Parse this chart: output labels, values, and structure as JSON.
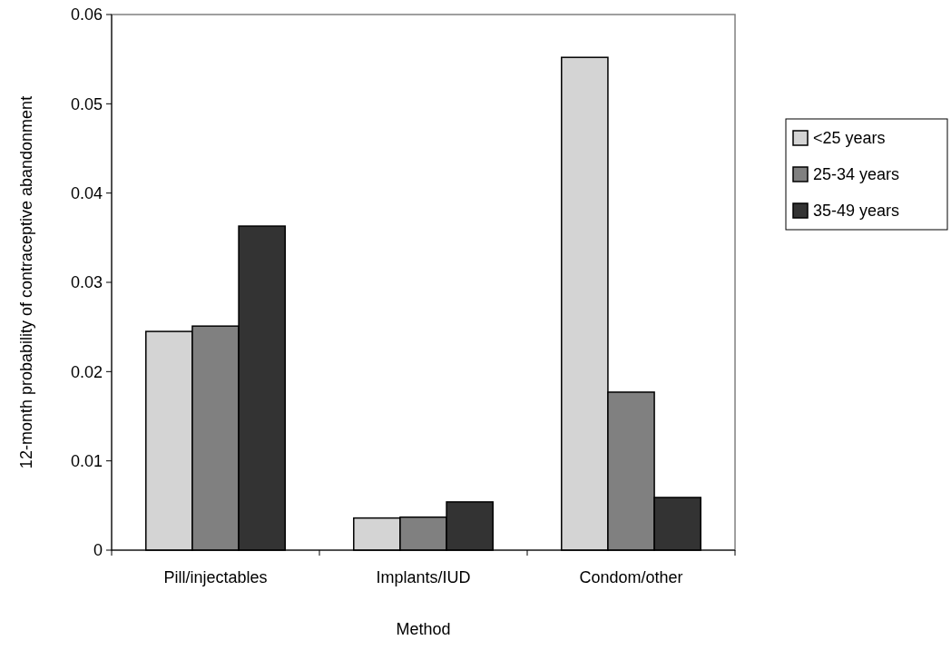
{
  "chart_data": {
    "type": "bar",
    "xlabel": "Method",
    "ylabel": "12-month probability of contraceptive abandonment",
    "categories": [
      "Pill/injectables",
      "Implants/IUD",
      "Condom/other"
    ],
    "series": [
      {
        "name": "<25 years",
        "color": "#d4d4d4",
        "values": [
          0.0245,
          0.0036,
          0.0552
        ]
      },
      {
        "name": "25-34 years",
        "color": "#808080",
        "values": [
          0.0251,
          0.0037,
          0.0177
        ]
      },
      {
        "name": "35-49 years",
        "color": "#333333",
        "values": [
          0.0363,
          0.0054,
          0.0059
        ]
      }
    ],
    "ylim": [
      0,
      0.06
    ],
    "yticks": [
      0,
      0.01,
      0.02,
      0.03,
      0.04,
      0.05,
      0.06
    ],
    "legend": "right",
    "grid": false
  }
}
